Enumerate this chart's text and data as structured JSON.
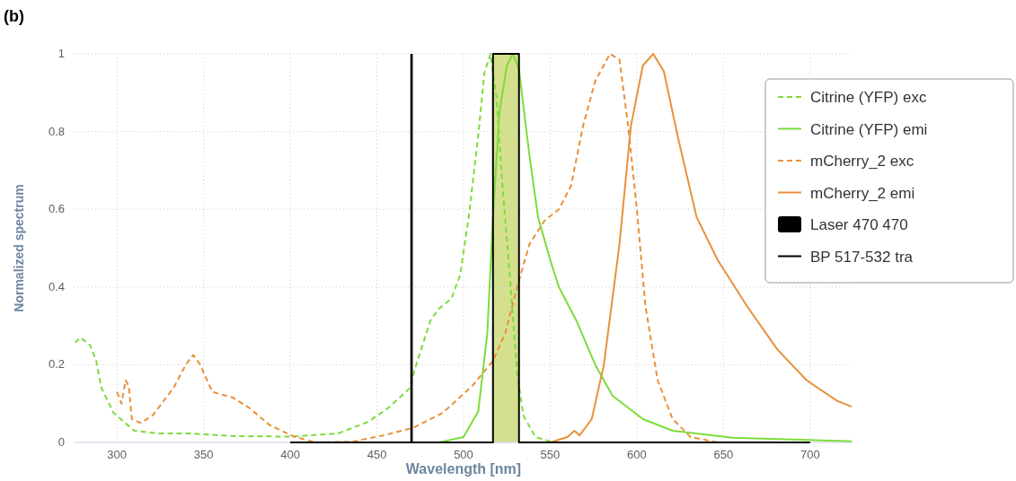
{
  "chart_data": {
    "type": "line",
    "xlabel": "Wavelength [nm]",
    "ylabel": "Normalized spectrum",
    "annotations": [
      "(b)"
    ],
    "xlim": [
      275,
      725
    ],
    "xticks": [
      300,
      350,
      400,
      450,
      500,
      550,
      600,
      650,
      700
    ],
    "ylim": [
      0,
      1
    ],
    "yticks": [
      0,
      0.2,
      0.4,
      0.6,
      0.8,
      1
    ],
    "grid": true,
    "legend": "top right",
    "bands": [
      {
        "axis": "x",
        "from": 517,
        "to": 532,
        "color": "#d5e08f"
      }
    ],
    "series": [
      {
        "name": "Citrine (YFP) exc",
        "color": "#7ddc3c",
        "line_style": "dashed",
        "x": [
          275.8,
          279,
          284.5,
          288,
          291,
          298,
          310,
          324,
          343,
          367,
          400,
          427.6,
          445,
          457,
          469,
          472,
          481,
          486,
          493,
          498,
          503,
          508.5,
          512,
          515.5,
          519,
          522.5,
          526.7,
          531,
          534.5,
          541.4,
          552,
          600
        ],
        "values": [
          0.257,
          0.27,
          0.25,
          0.21,
          0.14,
          0.076,
          0.03,
          0.023,
          0.023,
          0.016,
          0.015,
          0.023,
          0.053,
          0.09,
          0.14,
          0.19,
          0.315,
          0.345,
          0.37,
          0.43,
          0.58,
          0.79,
          0.95,
          1,
          0.89,
          0.66,
          0.43,
          0.175,
          0.07,
          0.014,
          0,
          0
        ]
      },
      {
        "name": "Citrine (YFP) emi",
        "color": "#7ddc3c",
        "line_style": "solid",
        "x": [
          486,
          500,
          508.5,
          513.7,
          517,
          520.7,
          525,
          528.5,
          532,
          538,
          543,
          550,
          555,
          565.5,
          576,
          586,
          603.5,
          620.7,
          655,
          724
        ],
        "values": [
          0,
          0.014,
          0.08,
          0.28,
          0.58,
          0.85,
          0.97,
          1,
          0.96,
          0.74,
          0.58,
          0.47,
          0.4,
          0.31,
          0.2,
          0.12,
          0.06,
          0.03,
          0.012,
          0.003
        ]
      },
      {
        "name": "mCherry_2 exc",
        "color": "#e8913a",
        "line_style": "dashed",
        "x": [
          300,
          302.6,
          305,
          306.8,
          308.6,
          313.8,
          320.7,
          332.6,
          339.7,
          344,
          348,
          355,
          367,
          376,
          388,
          402,
          415,
          436,
          453.5,
          470.7,
          488,
          505,
          517,
          524,
          531,
          538,
          546.6,
          555,
          562,
          569,
          576,
          584.5,
          590,
          595,
          600,
          605,
          612,
          620.7,
          631,
          646.6
        ],
        "values": [
          0.13,
          0.1,
          0.16,
          0.145,
          0.06,
          0.05,
          0.07,
          0.14,
          0.2,
          0.225,
          0.2,
          0.13,
          0.115,
          0.09,
          0.045,
          0.015,
          0,
          0.002,
          0.018,
          0.037,
          0.076,
          0.145,
          0.21,
          0.28,
          0.4,
          0.51,
          0.57,
          0.6,
          0.66,
          0.815,
          0.93,
          1,
          0.985,
          0.815,
          0.6,
          0.35,
          0.16,
          0.06,
          0.014,
          0
        ]
      },
      {
        "name": "mCherry_2 emi",
        "color": "#e8913a",
        "line_style": "solid",
        "x": [
          550,
          560,
          564,
          567,
          574,
          581,
          590,
          596.6,
          603.5,
          609.5,
          615.6,
          624,
          634.5,
          646.6,
          663.7,
          681,
          698,
          715.5,
          724
        ],
        "values": [
          0,
          0.014,
          0.03,
          0.018,
          0.06,
          0.2,
          0.51,
          0.815,
          0.97,
          1,
          0.955,
          0.78,
          0.58,
          0.47,
          0.35,
          0.24,
          0.16,
          0.107,
          0.092
        ]
      },
      {
        "name": "Laser 470 470",
        "color": "#000000",
        "type": "area",
        "x": [
          469.3,
          470.7
        ],
        "values": [
          1,
          1
        ]
      },
      {
        "name": "BP 517-532 tra",
        "color": "#000000",
        "line_style": "solid",
        "x": [
          400,
          517,
          517,
          532,
          532,
          700
        ],
        "values": [
          0,
          0,
          1,
          1,
          0,
          0
        ]
      }
    ]
  }
}
